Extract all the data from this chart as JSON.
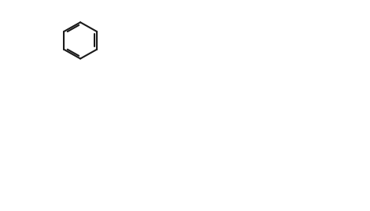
{
  "bg": "#ffffff",
  "lw": 1.5,
  "lw_double": 1.5,
  "bond_color": "#1a1a1a",
  "text_color": "#1a1a1a",
  "font_size": 7.5,
  "fig_w": 4.7,
  "fig_h": 2.68,
  "dpi": 100
}
